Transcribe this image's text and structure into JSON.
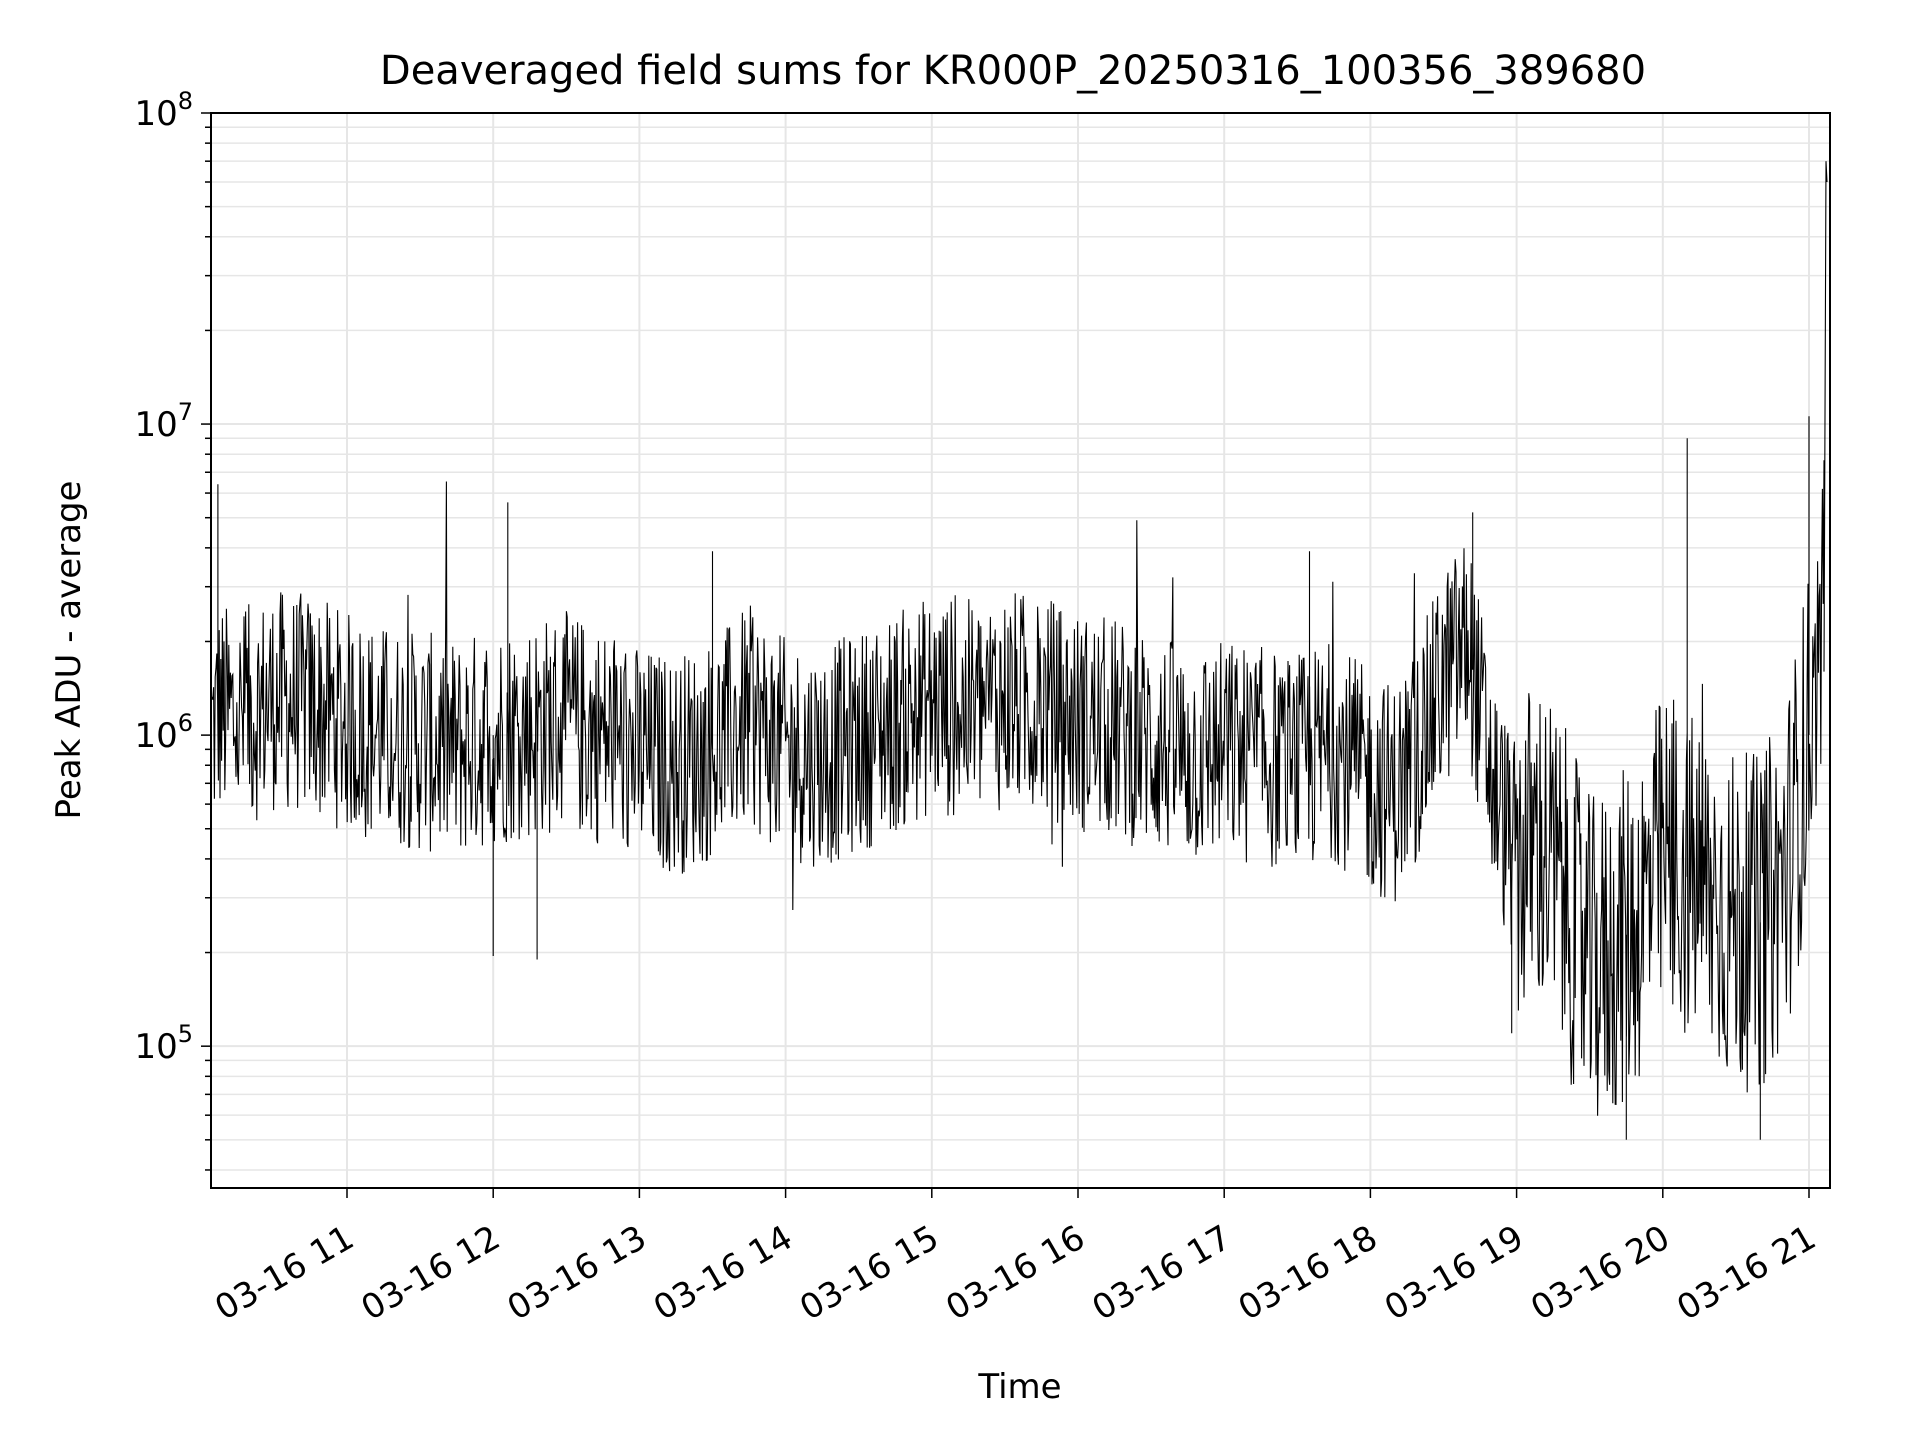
{
  "chart_data": {
    "type": "line",
    "title": "Deaveraged field sums for KR000P_20250316_100356_389680",
    "xlabel": "Time",
    "ylabel": "Peak ADU - average",
    "yscale": "log",
    "ylim": [
      35000,
      100000000
    ],
    "xlim": [
      "03-16 10:04",
      "03-16 21:08"
    ],
    "grid": "major and minor",
    "line_color": "#000000",
    "grid_color": "#e6e6e6",
    "x_ticks": [
      {
        "label": "03-16 11",
        "t": "03-16 11:00"
      },
      {
        "label": "03-16 12",
        "t": "03-16 12:00"
      },
      {
        "label": "03-16 13",
        "t": "03-16 13:00"
      },
      {
        "label": "03-16 14",
        "t": "03-16 14:00"
      },
      {
        "label": "03-16 15",
        "t": "03-16 15:00"
      },
      {
        "label": "03-16 16",
        "t": "03-16 16:00"
      },
      {
        "label": "03-16 17",
        "t": "03-16 17:00"
      },
      {
        "label": "03-16 18",
        "t": "03-16 18:00"
      },
      {
        "label": "03-16 19",
        "t": "03-16 19:00"
      },
      {
        "label": "03-16 20",
        "t": "03-16 20:00"
      },
      {
        "label": "03-16 21",
        "t": "03-16 21:00"
      }
    ],
    "y_ticks": [
      {
        "base": "10",
        "exp": "5",
        "value": 100000
      },
      {
        "base": "10",
        "exp": "6",
        "value": 1000000
      },
      {
        "base": "10",
        "exp": "7",
        "value": 10000000
      },
      {
        "base": "10",
        "exp": "8",
        "value": 100000000
      }
    ],
    "series": [
      {
        "x": [
          "03-16 10:04",
          "03-16 10:08",
          "03-16 10:15",
          "03-16 10:30",
          "03-16 10:45",
          "03-16 11:00",
          "03-16 11:15",
          "03-16 11:30",
          "03-16 11:45",
          "03-16 12:00",
          "03-16 12:15",
          "03-16 12:30",
          "03-16 12:45",
          "03-16 13:00",
          "03-16 13:15",
          "03-16 13:30",
          "03-16 13:45",
          "03-16 14:00",
          "03-16 14:15",
          "03-16 14:30",
          "03-16 14:45",
          "03-16 15:00",
          "03-16 15:15",
          "03-16 15:30",
          "03-16 15:45",
          "03-16 16:00",
          "03-16 16:15",
          "03-16 16:30",
          "03-16 16:45",
          "03-16 17:00",
          "03-16 17:15",
          "03-16 17:30",
          "03-16 17:45",
          "03-16 18:00",
          "03-16 18:10",
          "03-16 18:20",
          "03-16 18:30",
          "03-16 18:40",
          "03-16 18:50",
          "03-16 19:00",
          "03-16 19:10",
          "03-16 19:20",
          "03-16 19:30",
          "03-16 19:40",
          "03-16 19:50",
          "03-16 20:00",
          "03-16 20:10",
          "03-16 20:20",
          "03-16 20:30",
          "03-16 20:40",
          "03-16 20:50",
          "03-16 21:00",
          "03-16 21:05",
          "03-16 21:08"
        ],
        "y": [
          1000000,
          1200000,
          1100000,
          1300000,
          1250000,
          1100000,
          1000000,
          950000,
          900000,
          1000000,
          1050000,
          1100000,
          1000000,
          850000,
          800000,
          900000,
          1150000,
          900000,
          850000,
          950000,
          1100000,
          1250000,
          1200000,
          1300000,
          1250000,
          1100000,
          1050000,
          950000,
          850000,
          900000,
          850000,
          800000,
          900000,
          700000,
          650000,
          900000,
          1500000,
          2000000,
          700000,
          400000,
          450000,
          300000,
          180000,
          200000,
          260000,
          400000,
          350000,
          300000,
          250000,
          250000,
          350000,
          1000000,
          1600000,
          70000000
        ]
      }
    ],
    "spikes": [
      {
        "x": "03-16 10:07",
        "y": 6400000
      },
      {
        "x": "03-16 12:06",
        "y": 5600000
      },
      {
        "x": "03-16 13:30",
        "y": 3900000
      },
      {
        "x": "03-16 17:35",
        "y": 3900000
      },
      {
        "x": "03-16 18:42",
        "y": 5200000
      },
      {
        "x": "03-16 20:10",
        "y": 9000000
      },
      {
        "x": "03-16 21:00",
        "y": 10600000
      },
      {
        "x": "03-16 12:00",
        "y": 195000
      },
      {
        "x": "03-16 12:18",
        "y": 190000
      },
      {
        "x": "03-16 18:58",
        "y": 110000
      },
      {
        "x": "03-16 19:45",
        "y": 50000
      },
      {
        "x": "03-16 20:40",
        "y": 50000
      }
    ]
  }
}
